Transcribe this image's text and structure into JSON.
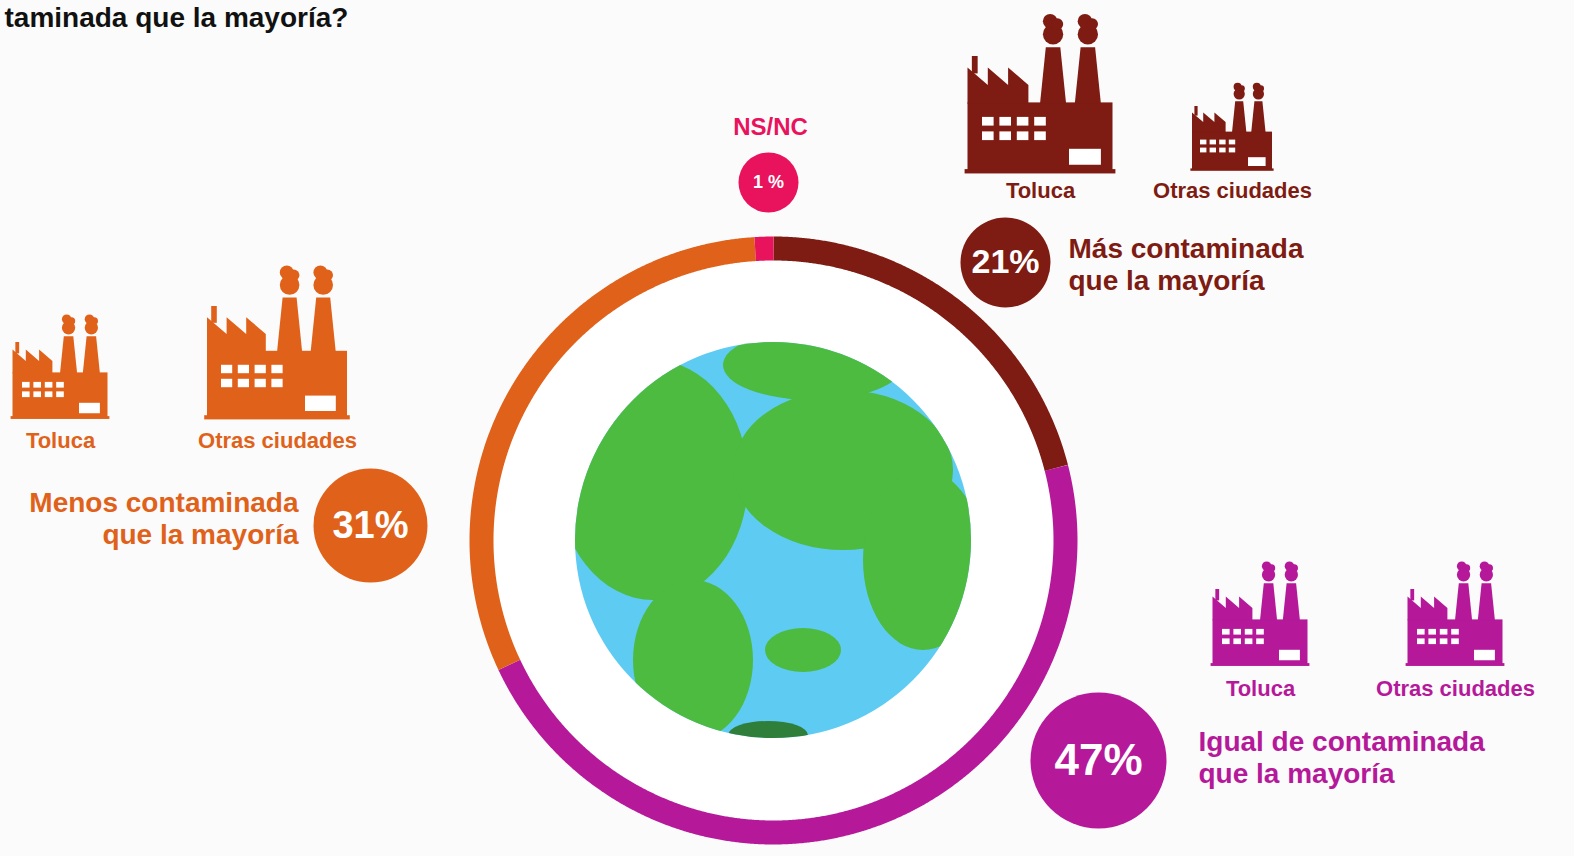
{
  "chart_data": {
    "type": "pie",
    "title": "taminada que la mayoría?",
    "categories": [
      "Más contaminada que la mayoría",
      "Igual de contaminada que la mayoría",
      "Menos contaminada que la mayoría",
      "NS/NC"
    ],
    "values": [
      21,
      47,
      31,
      1
    ],
    "value_labels": [
      "21%",
      "47%",
      "31%",
      "1 %"
    ],
    "colors": [
      "#7e1b12",
      "#b5199a",
      "#e0621a",
      "#e8135c"
    ],
    "data_labels": true,
    "icon_labels": [
      [
        "Toluca",
        "Otras ciudades"
      ],
      [
        "Toluca",
        "Otras ciudades"
      ],
      [
        "Toluca",
        "Otras ciudades"
      ],
      []
    ]
  }
}
